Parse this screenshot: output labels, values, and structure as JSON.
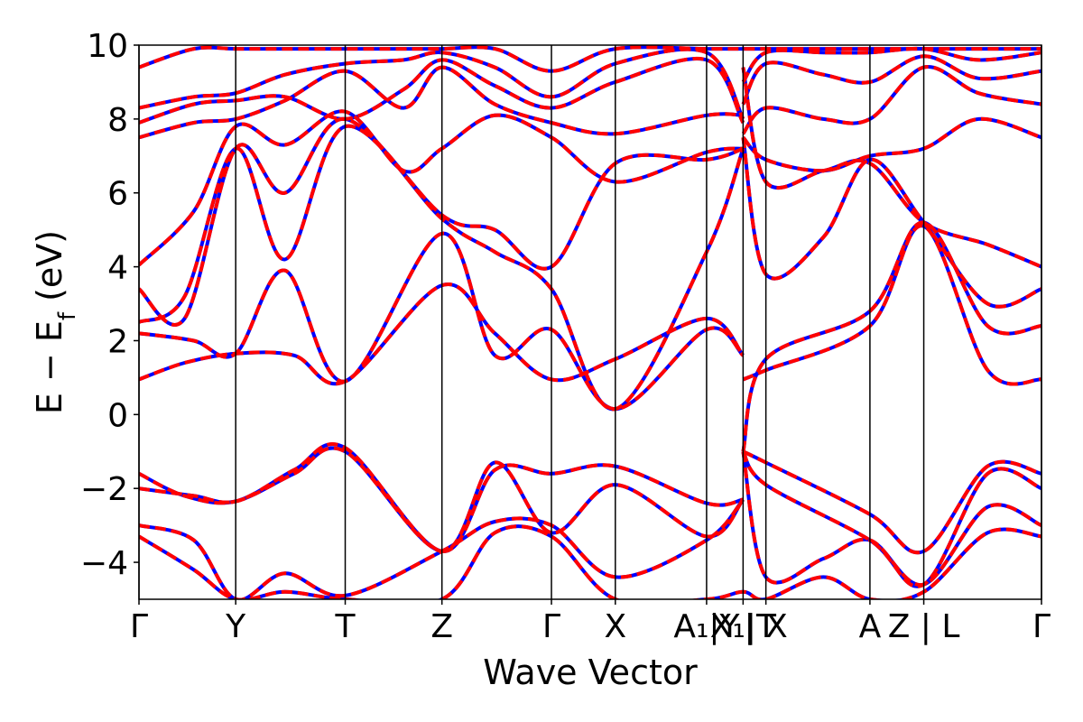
{
  "chart_data": {
    "type": "line",
    "title": "",
    "xlabel": "Wave Vector",
    "ylabel_parts": {
      "prefix": "E − E",
      "subscript": "f",
      "suffix": " (eV)"
    },
    "ylim": [
      -5,
      10
    ],
    "yticks": [
      {
        "value": -4,
        "label": "−4"
      },
      {
        "value": -2,
        "label": "−2"
      },
      {
        "value": 0,
        "label": "0"
      },
      {
        "value": 2,
        "label": "2"
      },
      {
        "value": 4,
        "label": "4"
      },
      {
        "value": 6,
        "label": "6"
      },
      {
        "value": 8,
        "label": "8"
      },
      {
        "value": 10,
        "label": "10"
      }
    ],
    "xlim": [
      0,
      9.89
    ],
    "kpoints": [
      {
        "x": 0.0,
        "label": "Γ"
      },
      {
        "x": 1.06,
        "label": "Y"
      },
      {
        "x": 2.26,
        "label": "T"
      },
      {
        "x": 3.32,
        "label": "Z"
      },
      {
        "x": 4.52,
        "label": "Γ"
      },
      {
        "x": 5.22,
        "label": "X"
      },
      {
        "x": 6.22,
        "label": "A₁|Y"
      },
      {
        "x": 6.62,
        "label": "X₁|T"
      },
      {
        "x": 6.87,
        "label": "| X"
      },
      {
        "x": 8.01,
        "label": "A"
      },
      {
        "x": 8.6,
        "label": "Z | L"
      },
      {
        "x": 9.89,
        "label": "Γ"
      }
    ],
    "series_styles": [
      {
        "name": "reference",
        "color": "#0000ff",
        "width": 4,
        "dash": ""
      },
      {
        "name": "model",
        "color": "#ff0000",
        "width": 4,
        "dash": "12,6"
      }
    ],
    "bands": [
      {
        "name": "band-1",
        "points": [
          [
            0,
            0.95
          ],
          [
            0.5,
            1.4
          ],
          [
            1.06,
            1.65
          ],
          [
            1.7,
            1.6
          ],
          [
            2.26,
            0.9
          ],
          [
            3.32,
            3.5
          ],
          [
            3.9,
            2.2
          ],
          [
            4.52,
            0.95
          ],
          [
            5.22,
            1.5
          ],
          [
            6.22,
            2.6
          ],
          [
            6.62,
            1.6
          ],
          [
            6.62,
            0.95
          ],
          [
            6.87,
            1.2
          ],
          [
            8.01,
            2.4
          ],
          [
            8.6,
            5.1
          ],
          [
            9.3,
            1.2
          ],
          [
            9.89,
            0.95
          ]
        ]
      },
      {
        "name": "band-2",
        "points": [
          [
            0,
            2.2
          ],
          [
            0.6,
            2.0
          ],
          [
            1.06,
            1.65
          ],
          [
            1.6,
            3.9
          ],
          [
            2.26,
            0.9
          ],
          [
            3.32,
            4.9
          ],
          [
            3.9,
            1.6
          ],
          [
            4.52,
            2.3
          ],
          [
            5.22,
            0.15
          ],
          [
            6.22,
            2.3
          ],
          [
            6.62,
            1.6
          ],
          [
            6.62,
            -1.0
          ],
          [
            6.87,
            1.5
          ],
          [
            8.01,
            2.8
          ],
          [
            8.6,
            5.2
          ],
          [
            9.3,
            2.4
          ],
          [
            9.89,
            2.4
          ]
        ]
      },
      {
        "name": "band-3",
        "points": [
          [
            0,
            2.5
          ],
          [
            0.5,
            3.2
          ],
          [
            1.06,
            7.2
          ],
          [
            1.6,
            4.2
          ],
          [
            2.26,
            7.8
          ],
          [
            3.32,
            5.3
          ],
          [
            3.9,
            4.4
          ],
          [
            4.52,
            3.4
          ],
          [
            5.22,
            0.15
          ],
          [
            6.22,
            4.4
          ],
          [
            6.62,
            7.2
          ],
          [
            6.62,
            7.5
          ],
          [
            6.87,
            3.8
          ],
          [
            7.5,
            4.8
          ],
          [
            8.01,
            6.9
          ],
          [
            8.6,
            5.2
          ],
          [
            9.3,
            3.0
          ],
          [
            9.89,
            3.4
          ]
        ]
      },
      {
        "name": "band-4",
        "points": [
          [
            0,
            3.4
          ],
          [
            0.5,
            2.6
          ],
          [
            1.06,
            7.2
          ],
          [
            1.6,
            6.0
          ],
          [
            2.26,
            8.0
          ],
          [
            3.32,
            5.4
          ],
          [
            3.9,
            5.0
          ],
          [
            4.52,
            4.0
          ],
          [
            5.22,
            6.8
          ],
          [
            6.22,
            6.9
          ],
          [
            6.62,
            7.2
          ],
          [
            6.62,
            9.4
          ],
          [
            6.87,
            6.3
          ],
          [
            7.5,
            6.6
          ],
          [
            8.01,
            6.8
          ],
          [
            8.6,
            5.2
          ],
          [
            9.3,
            4.6
          ],
          [
            9.89,
            4.0
          ]
        ]
      },
      {
        "name": "band-5",
        "points": [
          [
            0,
            4.05
          ],
          [
            0.6,
            5.5
          ],
          [
            1.06,
            7.8
          ],
          [
            1.6,
            7.3
          ],
          [
            2.26,
            8.2
          ],
          [
            2.9,
            6.6
          ],
          [
            3.32,
            7.2
          ],
          [
            3.9,
            8.1
          ],
          [
            4.52,
            7.5
          ],
          [
            5.22,
            6.3
          ],
          [
            6.22,
            7.1
          ],
          [
            6.62,
            7.2
          ],
          [
            6.62,
            7.5
          ],
          [
            6.87,
            6.9
          ],
          [
            7.5,
            6.6
          ],
          [
            8.01,
            7.0
          ],
          [
            8.6,
            7.2
          ],
          [
            9.2,
            8.0
          ],
          [
            9.89,
            7.5
          ]
        ]
      },
      {
        "name": "band-6",
        "points": [
          [
            0,
            7.5
          ],
          [
            0.6,
            7.9
          ],
          [
            1.06,
            8.0
          ],
          [
            1.6,
            8.5
          ],
          [
            2.26,
            9.3
          ],
          [
            2.9,
            8.3
          ],
          [
            3.32,
            9.4
          ],
          [
            3.9,
            8.4
          ],
          [
            4.52,
            7.9
          ],
          [
            5.22,
            7.6
          ],
          [
            6.22,
            8.1
          ],
          [
            6.62,
            8.1
          ],
          [
            6.62,
            7.6
          ],
          [
            6.87,
            8.3
          ],
          [
            7.5,
            8.0
          ],
          [
            8.01,
            8.0
          ],
          [
            8.6,
            9.4
          ],
          [
            9.2,
            8.7
          ],
          [
            9.89,
            8.4
          ]
        ]
      },
      {
        "name": "band-7",
        "points": [
          [
            0,
            7.9
          ],
          [
            0.6,
            8.4
          ],
          [
            1.06,
            8.5
          ],
          [
            1.6,
            8.6
          ],
          [
            2.26,
            8.0
          ],
          [
            2.9,
            8.8
          ],
          [
            3.32,
            9.6
          ],
          [
            3.9,
            8.9
          ],
          [
            4.52,
            8.3
          ],
          [
            5.22,
            9.0
          ],
          [
            6.22,
            9.6
          ],
          [
            6.62,
            7.9
          ],
          [
            6.62,
            8.4
          ],
          [
            6.87,
            9.5
          ],
          [
            7.5,
            9.2
          ],
          [
            8.01,
            9.0
          ],
          [
            8.6,
            9.7
          ],
          [
            9.2,
            9.1
          ],
          [
            9.89,
            9.3
          ]
        ]
      },
      {
        "name": "band-8",
        "points": [
          [
            0,
            8.3
          ],
          [
            0.6,
            8.6
          ],
          [
            1.06,
            8.7
          ],
          [
            1.6,
            9.2
          ],
          [
            2.26,
            9.5
          ],
          [
            2.9,
            9.6
          ],
          [
            3.32,
            9.8
          ],
          [
            3.9,
            9.4
          ],
          [
            4.52,
            8.6
          ],
          [
            5.22,
            9.5
          ],
          [
            6.22,
            9.8
          ],
          [
            6.62,
            8.0
          ],
          [
            6.62,
            9.0
          ],
          [
            6.87,
            9.8
          ],
          [
            7.5,
            9.8
          ],
          [
            8.01,
            9.8
          ],
          [
            8.6,
            9.9
          ],
          [
            9.2,
            9.6
          ],
          [
            9.89,
            9.8
          ]
        ]
      },
      {
        "name": "band-9",
        "points": [
          [
            0,
            9.4
          ],
          [
            0.6,
            9.9
          ],
          [
            1.06,
            9.9
          ],
          [
            1.6,
            9.9
          ],
          [
            2.26,
            9.9
          ],
          [
            2.9,
            9.9
          ],
          [
            3.32,
            9.9
          ],
          [
            3.9,
            9.9
          ],
          [
            4.52,
            9.3
          ],
          [
            5.22,
            9.9
          ],
          [
            6.22,
            9.9
          ],
          [
            6.62,
            9.9
          ],
          [
            6.87,
            9.9
          ],
          [
            8.01,
            9.9
          ],
          [
            8.6,
            9.9
          ],
          [
            9.89,
            9.9
          ]
        ]
      },
      {
        "name": "band-10",
        "points": [
          [
            0,
            -1.6
          ],
          [
            0.5,
            -2.2
          ],
          [
            1.06,
            -2.35
          ],
          [
            1.7,
            -1.5
          ],
          [
            2.26,
            -0.9
          ],
          [
            3.32,
            -3.7
          ],
          [
            3.9,
            -1.5
          ],
          [
            4.52,
            -1.6
          ],
          [
            5.22,
            -1.4
          ],
          [
            6.22,
            -2.4
          ],
          [
            6.62,
            -2.3
          ],
          [
            6.62,
            -1.0
          ],
          [
            6.87,
            -1.3
          ],
          [
            8.01,
            -2.7
          ],
          [
            8.6,
            -3.7
          ],
          [
            9.3,
            -1.4
          ],
          [
            9.89,
            -1.6
          ]
        ]
      },
      {
        "name": "band-11",
        "points": [
          [
            0,
            -2.0
          ],
          [
            0.6,
            -2.2
          ],
          [
            1.06,
            -2.35
          ],
          [
            1.7,
            -1.6
          ],
          [
            2.26,
            -1.0
          ],
          [
            3.32,
            -3.7
          ],
          [
            3.9,
            -1.3
          ],
          [
            4.52,
            -3.2
          ],
          [
            5.22,
            -1.9
          ],
          [
            6.22,
            -3.3
          ],
          [
            6.62,
            -2.3
          ],
          [
            6.62,
            -1.0
          ],
          [
            6.87,
            -1.9
          ],
          [
            8.01,
            -3.4
          ],
          [
            8.6,
            -4.6
          ],
          [
            9.3,
            -1.6
          ],
          [
            9.89,
            -2.0
          ]
        ]
      },
      {
        "name": "band-12",
        "points": [
          [
            0,
            -3.0
          ],
          [
            0.6,
            -3.4
          ],
          [
            1.06,
            -5.0
          ],
          [
            1.6,
            -4.3
          ],
          [
            2.26,
            -4.9
          ],
          [
            3.32,
            -3.7
          ],
          [
            3.9,
            -2.9
          ],
          [
            4.52,
            -3.0
          ],
          [
            5.22,
            -4.4
          ],
          [
            6.22,
            -3.4
          ],
          [
            6.62,
            -2.3
          ],
          [
            6.62,
            -1.0
          ],
          [
            6.87,
            -4.4
          ],
          [
            7.5,
            -3.9
          ],
          [
            8.01,
            -3.4
          ],
          [
            8.6,
            -4.6
          ],
          [
            9.3,
            -2.5
          ],
          [
            9.89,
            -3.0
          ]
        ]
      },
      {
        "name": "band-13",
        "points": [
          [
            0,
            -3.3
          ],
          [
            0.6,
            -4.2
          ],
          [
            1.06,
            -5.0
          ],
          [
            1.6,
            -4.8
          ],
          [
            2.26,
            -5.0
          ],
          [
            3.32,
            -5.0
          ],
          [
            3.9,
            -3.2
          ],
          [
            4.52,
            -3.3
          ],
          [
            5.22,
            -5.0
          ],
          [
            6.22,
            -5.0
          ],
          [
            6.62,
            -4.8
          ],
          [
            6.87,
            -5.0
          ],
          [
            7.5,
            -4.4
          ],
          [
            8.01,
            -5.0
          ],
          [
            8.6,
            -4.8
          ],
          [
            9.3,
            -3.2
          ],
          [
            9.89,
            -3.3
          ]
        ]
      }
    ]
  }
}
